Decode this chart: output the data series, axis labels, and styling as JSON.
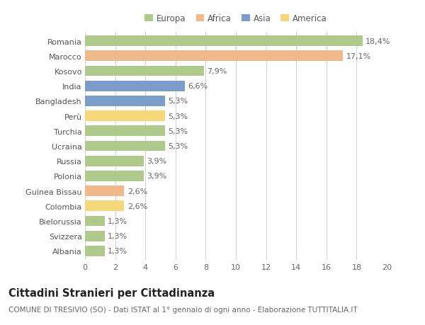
{
  "countries": [
    "Romania",
    "Marocco",
    "Kosovo",
    "India",
    "Bangladesh",
    "Perù",
    "Turchia",
    "Ucraina",
    "Russia",
    "Polonia",
    "Guinea Bissau",
    "Colombia",
    "Bielorussia",
    "Svizzera",
    "Albania"
  ],
  "values": [
    18.4,
    17.1,
    7.9,
    6.6,
    5.3,
    5.3,
    5.3,
    5.3,
    3.9,
    3.9,
    2.6,
    2.6,
    1.3,
    1.3,
    1.3
  ],
  "labels": [
    "18,4%",
    "17,1%",
    "7,9%",
    "6,6%",
    "5,3%",
    "5,3%",
    "5,3%",
    "5,3%",
    "3,9%",
    "3,9%",
    "2,6%",
    "2,6%",
    "1,3%",
    "1,3%",
    "1,3%"
  ],
  "continents": [
    "Europa",
    "Africa",
    "Europa",
    "Asia",
    "Asia",
    "America",
    "Europa",
    "Europa",
    "Europa",
    "Europa",
    "Africa",
    "America",
    "Europa",
    "Europa",
    "Europa"
  ],
  "colors": {
    "Europa": "#aec98a",
    "Africa": "#f0b98a",
    "Asia": "#7b9ec9",
    "America": "#f5d87a"
  },
  "legend_order": [
    "Europa",
    "Africa",
    "Asia",
    "America"
  ],
  "legend_colors": [
    "#aec98a",
    "#f0b98a",
    "#7b9ec9",
    "#f5d87a"
  ],
  "xlim": [
    0,
    20
  ],
  "xticks": [
    0,
    2,
    4,
    6,
    8,
    10,
    12,
    14,
    16,
    18,
    20
  ],
  "title": "Cittadini Stranieri per Cittadinanza",
  "subtitle": "COMUNE DI TRESIVIO (SO) - Dati ISTAT al 1° gennaio di ogni anno - Elaborazione TUTTITALIA.IT",
  "background_color": "#ffffff",
  "grid_color": "#d0d0d0",
  "bar_height": 0.7,
  "label_fontsize": 8,
  "tick_fontsize": 8,
  "title_fontsize": 10.5,
  "subtitle_fontsize": 7.5
}
